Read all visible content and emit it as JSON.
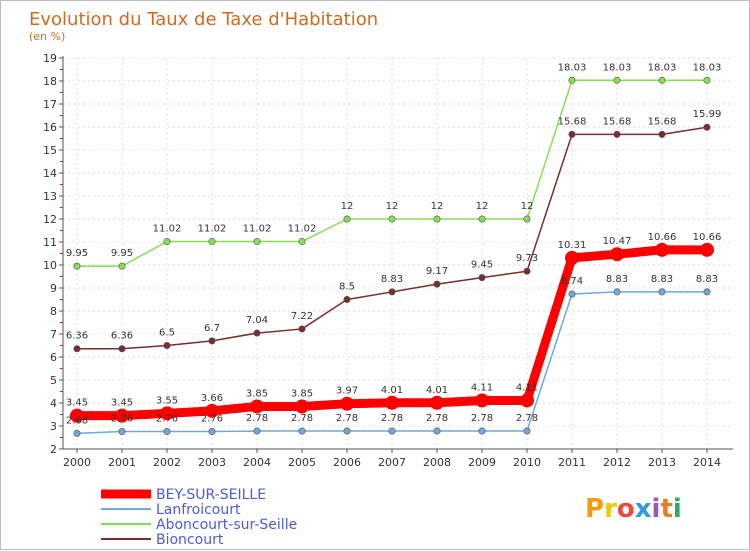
{
  "chart_data": {
    "type": "line",
    "title": "Evolution du Taux de Taxe d'Habitation",
    "subtitle": "(en %)",
    "x": [
      "2000",
      "2001",
      "2002",
      "2003",
      "2004",
      "2005",
      "2006",
      "2007",
      "2008",
      "2009",
      "2010",
      "2011",
      "2012",
      "2013",
      "2014"
    ],
    "ylim": [
      2,
      19
    ],
    "yticks": [
      2,
      3,
      4,
      5,
      6,
      7,
      8,
      9,
      10,
      11,
      12,
      13,
      14,
      15,
      16,
      17,
      18,
      19
    ],
    "grid": true,
    "series": [
      {
        "name": "BEY-SUR-SEILLE",
        "color": "#ff0000",
        "values": [
          3.45,
          3.45,
          3.55,
          3.66,
          3.85,
          3.85,
          3.97,
          4.01,
          4.01,
          4.11,
          4.11,
          10.31,
          10.47,
          10.66,
          10.66
        ],
        "labels": [
          "3.45",
          "3.45",
          "3.55",
          "3.66",
          "3.85",
          "3.85",
          "3.97",
          "4.01",
          "4.01",
          "4.11",
          "4.11",
          "10.31",
          "10.47",
          "10.66",
          "10.66"
        ]
      },
      {
        "name": "Lanfroicourt",
        "color": "#6fa8dc",
        "values": [
          2.68,
          2.76,
          2.76,
          2.76,
          2.78,
          2.78,
          2.78,
          2.78,
          2.78,
          2.78,
          2.78,
          8.74,
          8.83,
          8.83,
          8.83
        ],
        "labels": [
          "2.68",
          "2.76",
          "2.76",
          "2.76",
          "2.78",
          "2.78",
          "2.78",
          "2.78",
          "2.78",
          "2.78",
          "2.78",
          "8.74",
          "8.83",
          "8.83",
          "8.83"
        ]
      },
      {
        "name": "Aboncourt-sur-Seille",
        "color": "#88dd55",
        "values": [
          9.95,
          9.95,
          11.02,
          11.02,
          11.02,
          11.02,
          12,
          12,
          12,
          12,
          12,
          18.03,
          18.03,
          18.03,
          18.03
        ],
        "labels": [
          "9.95",
          "9.95",
          "11.02",
          "11.02",
          "11.02",
          "11.02",
          "12",
          "12",
          "12",
          "12",
          "12",
          "18.03",
          "18.03",
          "18.03",
          "18.03"
        ]
      },
      {
        "name": "Bioncourt",
        "color": "#7b2d2d",
        "values": [
          6.36,
          6.36,
          6.5,
          6.7,
          7.04,
          7.22,
          8.5,
          8.83,
          9.17,
          9.45,
          9.73,
          15.68,
          15.68,
          15.68,
          15.99
        ],
        "labels": [
          "6.36",
          "6.36",
          "6.5",
          "6.7",
          "7.04",
          "7.22",
          "8.5",
          "8.83",
          "9.17",
          "9.45",
          "9.73",
          "15.68",
          "15.68",
          "15.68",
          "15.99"
        ]
      }
    ],
    "legend": "bottom-left"
  },
  "logo": {
    "text": "Proxiti"
  }
}
